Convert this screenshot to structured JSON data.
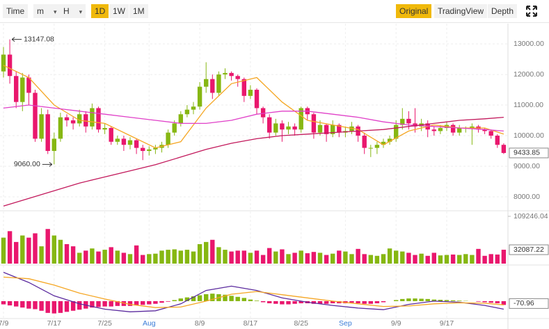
{
  "toolbar": {
    "left": [
      "Time",
      "m",
      "H",
      "1D",
      "1W",
      "1M"
    ],
    "active_left": "1D",
    "right": [
      "Original",
      "TradingView",
      "Depth"
    ],
    "active_right": "Original"
  },
  "chart_data": {
    "type": "candlestick",
    "categories": [
      "7/9",
      null,
      null,
      null,
      null,
      null,
      null,
      null,
      "7/17",
      null,
      null,
      null,
      null,
      null,
      null,
      null,
      "7/25",
      null,
      null,
      null,
      null,
      null,
      null,
      "Aug",
      null,
      null,
      null,
      null,
      null,
      null,
      null,
      "8/9",
      null,
      null,
      null,
      null,
      null,
      null,
      null,
      "8/17",
      null,
      null,
      null,
      null,
      null,
      null,
      null,
      "8/25",
      null,
      null,
      null,
      null,
      null,
      null,
      "Sep",
      null,
      null,
      null,
      null,
      null,
      null,
      null,
      "9/9",
      null,
      null,
      null,
      null,
      null,
      null,
      null,
      "9/17",
      null,
      null,
      null,
      null,
      null,
      null,
      null,
      null,
      null
    ],
    "open": [
      12100,
      12650,
      11950,
      11100,
      11900,
      11400,
      9900,
      10700,
      9500,
      9900,
      10600,
      10500,
      10400,
      10700,
      10300,
      10900,
      10200,
      10250,
      9800,
      9900,
      9700,
      9850,
      9600,
      9500,
      9550,
      9600,
      9700,
      10100,
      10400,
      10700,
      10850,
      10950,
      11600,
      11850,
      11400,
      12000,
      12050,
      11950,
      11850,
      11300,
      11500,
      10900,
      10600,
      10100,
      10400,
      10200,
      10300,
      10200,
      10900,
      10700,
      10100,
      10350,
      10050,
      10350,
      10100,
      10150,
      10300,
      10000,
      9600,
      9600,
      9700,
      9800,
      9900,
      10350,
      10550,
      10400,
      10300,
      10400,
      10200,
      10150,
      10250,
      10350,
      10100,
      10250,
      10250,
      10300,
      10200,
      10150,
      10000,
      9700
    ],
    "high": [
      12900,
      13147.08,
      12100,
      12050,
      12000,
      11500,
      10900,
      10850,
      10100,
      10750,
      10700,
      10600,
      10850,
      10800,
      11050,
      10950,
      10400,
      10300,
      10000,
      10000,
      9950,
      9900,
      9700,
      9650,
      9700,
      9800,
      10200,
      10500,
      10800,
      11000,
      11100,
      11750,
      12400,
      12000,
      12100,
      12200,
      12100,
      12000,
      11900,
      11650,
      11550,
      10950,
      10700,
      10550,
      10500,
      10450,
      10400,
      10950,
      10950,
      10750,
      10500,
      10400,
      10500,
      10400,
      10300,
      10450,
      10350,
      10100,
      9700,
      9800,
      9900,
      10000,
      10500,
      10900,
      10800,
      10900,
      10550,
      10500,
      10300,
      10350,
      10450,
      10400,
      10350,
      10300,
      10400,
      10350,
      10250,
      10200,
      10050,
      9750
    ],
    "low": [
      11900,
      11700,
      10900,
      10800,
      11000,
      9800,
      9800,
      9400,
      9060,
      9800,
      10300,
      10200,
      10300,
      10100,
      10200,
      10100,
      10050,
      9700,
      9700,
      9500,
      9550,
      9400,
      9200,
      9350,
      9400,
      9450,
      9600,
      10000,
      10300,
      10600,
      10700,
      10850,
      11400,
      11200,
      11300,
      11850,
      11800,
      11600,
      11100,
      11200,
      10700,
      10400,
      9900,
      10000,
      9800,
      10050,
      10000,
      10100,
      10500,
      9900,
      10000,
      9800,
      9950,
      9950,
      9950,
      10050,
      9800,
      9400,
      9300,
      9400,
      9600,
      9700,
      9800,
      10200,
      10200,
      10100,
      10150,
      9950,
      10000,
      10050,
      10150,
      10000,
      10000,
      10100,
      9700,
      10100,
      10050,
      9900,
      9600,
      9400
    ],
    "close": [
      12650,
      11950,
      11100,
      11900,
      11400,
      9900,
      10700,
      9500,
      9900,
      10600,
      10500,
      10400,
      10700,
      10300,
      10900,
      10200,
      10250,
      9800,
      9900,
      9700,
      9850,
      9600,
      9500,
      9550,
      9600,
      9700,
      10100,
      10400,
      10700,
      10850,
      10950,
      11600,
      11850,
      11400,
      12000,
      12050,
      11950,
      11850,
      11300,
      11500,
      10900,
      10600,
      10100,
      10400,
      10200,
      10300,
      10200,
      10900,
      10700,
      10100,
      10350,
      10050,
      10350,
      10100,
      10150,
      10300,
      10000,
      9600,
      9600,
      9700,
      9800,
      9900,
      10350,
      10550,
      10400,
      10300,
      10400,
      10200,
      10150,
      10250,
      10350,
      10100,
      10250,
      10250,
      10300,
      10200,
      10150,
      10000,
      9700,
      9433.85
    ],
    "ylim": [
      7590,
      13730
    ],
    "yticks": [
      {
        "value": 8000,
        "label": "8000.00"
      },
      {
        "value": 9000,
        "label": "9000.00"
      },
      {
        "value": 10000,
        "label": "10000.00"
      },
      {
        "value": 11000,
        "label": "11000.00"
      },
      {
        "value": 12000,
        "label": "12000.00"
      },
      {
        "value": 13000,
        "label": "13000.00"
      }
    ],
    "annotations": [
      {
        "label": "13147.08"
      },
      {
        "label": "9060.00"
      }
    ],
    "colors": {
      "up": "#86b712",
      "down": "#e9176d"
    },
    "ma": [
      {
        "color": "#f5a623",
        "x": [
          0,
          4,
          8,
          12,
          16,
          20,
          24,
          28,
          32,
          36,
          40,
          44,
          48,
          52,
          56,
          60,
          64,
          68,
          72,
          76,
          79
        ],
        "values": [
          12300,
          11900,
          11000,
          10500,
          10400,
          10000,
          9600,
          9800,
          10900,
          11700,
          11900,
          11100,
          10500,
          10350,
          10200,
          9700,
          10150,
          10350,
          10250,
          10250,
          10050
        ]
      },
      {
        "color": "#e040c8",
        "x": [
          0,
          4,
          8,
          12,
          16,
          20,
          24,
          28,
          32,
          36,
          40,
          44,
          48,
          52,
          56,
          60,
          64,
          68,
          72,
          76,
          79
        ],
        "values": [
          10900,
          11000,
          10900,
          10800,
          10700,
          10600,
          10500,
          10400,
          10400,
          10500,
          10700,
          10800,
          10800,
          10700,
          10600,
          10450,
          10350,
          10300,
          10250,
          10200,
          10150
        ]
      },
      {
        "color": "#c2185b",
        "x": [
          0,
          4,
          8,
          12,
          16,
          20,
          24,
          28,
          32,
          36,
          40,
          44,
          48,
          52,
          56,
          60,
          64,
          68,
          72,
          76,
          79
        ],
        "values": [
          7700,
          7950,
          8200,
          8450,
          8650,
          8850,
          9050,
          9300,
          9550,
          9750,
          9900,
          10000,
          10050,
          10100,
          10150,
          10200,
          10300,
          10400,
          10500,
          10550,
          10600
        ]
      }
    ],
    "volume": {
      "values": [
        60000,
        75000,
        50000,
        65000,
        60000,
        70000,
        40000,
        80000,
        65000,
        55000,
        45000,
        40000,
        25000,
        30000,
        35000,
        28000,
        32000,
        38000,
        30000,
        25000,
        22000,
        42000,
        20000,
        22000,
        23000,
        30000,
        32000,
        33000,
        30000,
        32000,
        28000,
        45000,
        50000,
        55000,
        38000,
        32000,
        28000,
        30000,
        30000,
        25000,
        30000,
        20000,
        36000,
        28000,
        33000,
        22000,
        25000,
        30000,
        24000,
        27000,
        25000,
        20000,
        23000,
        30000,
        28000,
        22000,
        34000,
        22000,
        20000,
        18000,
        22000,
        35000,
        30000,
        28000,
        25000,
        20000,
        23000,
        18000,
        25000,
        19000,
        20000,
        21000,
        20000,
        22000,
        20000,
        34000,
        18000,
        22000,
        21000,
        32087.22
      ],
      "ylim": [
        0,
        117300
      ],
      "yticks": [
        109246.04
      ]
    },
    "macd": {
      "ylim": [
        -300,
        650
      ],
      "hist": [
        -60,
        -80,
        -100,
        -120,
        -140,
        -150,
        -180,
        -220,
        -230,
        -220,
        -200,
        -180,
        -160,
        -140,
        -120,
        -110,
        -100,
        -100,
        -90,
        -90,
        -90,
        -80,
        -70,
        -60,
        -50,
        -30,
        -10,
        20,
        50,
        70,
        90,
        110,
        130,
        140,
        130,
        120,
        100,
        80,
        60,
        30,
        10,
        -20,
        -40,
        -50,
        -60,
        -60,
        -50,
        -40,
        -40,
        -50,
        -50,
        -50,
        -40,
        -40,
        -40,
        -30,
        -40,
        -50,
        -50,
        -40,
        -20,
        0,
        20,
        40,
        50,
        50,
        45,
        40,
        30,
        25,
        20,
        15,
        10,
        5,
        0,
        -10,
        -20,
        -30,
        -40,
        -70.96
      ],
      "lines": [
        {
          "color": "#5b2a9e",
          "x": [
            0,
            4,
            8,
            12,
            16,
            20,
            24,
            28,
            32,
            36,
            40,
            44,
            48,
            52,
            56,
            60,
            64,
            68,
            72,
            76,
            79
          ],
          "values": [
            540,
            350,
            100,
            -50,
            -150,
            -200,
            -180,
            -50,
            200,
            280,
            200,
            60,
            -20,
            -80,
            -130,
            -160,
            -60,
            0,
            -20,
            -80,
            -150
          ]
        },
        {
          "color": "#f5a623",
          "x": [
            0,
            4,
            8,
            12,
            16,
            20,
            24,
            28,
            32,
            36,
            40,
            44,
            48,
            52,
            56,
            60,
            64,
            68,
            72,
            76,
            79
          ],
          "values": [
            450,
            420,
            300,
            150,
            40,
            -60,
            -120,
            -110,
            0,
            130,
            180,
            120,
            60,
            0,
            -50,
            -100,
            -90,
            -50,
            -30,
            -40,
            -70
          ]
        }
      ]
    }
  }
}
